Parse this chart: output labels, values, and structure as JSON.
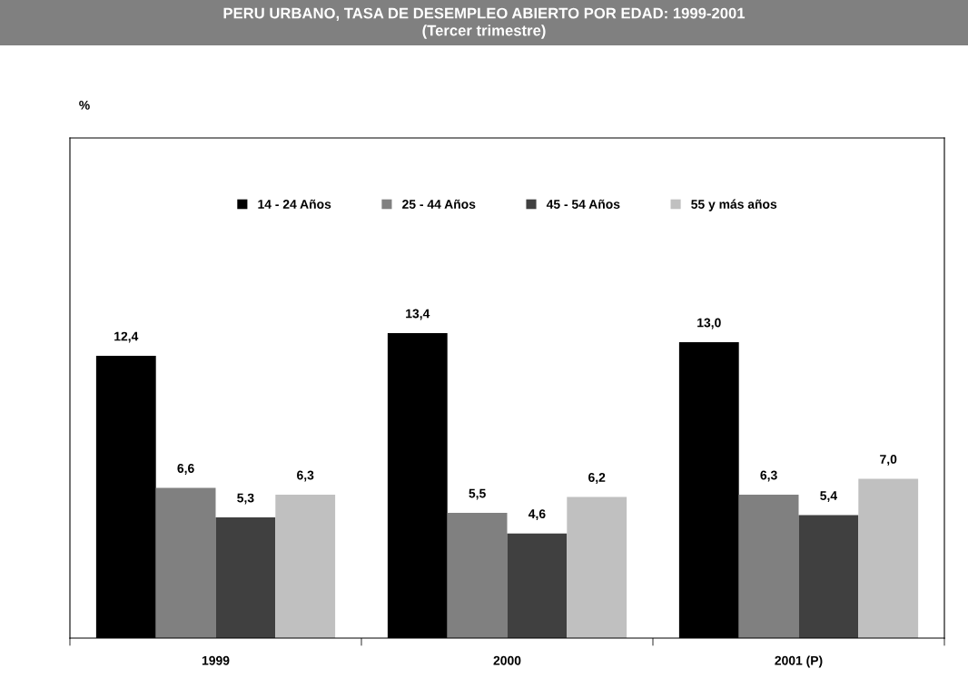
{
  "chart_data": {
    "type": "bar",
    "title": "PERU URBANO, TASA DE DESEMPLEO ABIERTO POR EDAD: 1999-2001",
    "subtitle": "(Tercer trimestre)",
    "annotations": [
      "%"
    ],
    "categories": [
      "1999",
      "2000",
      "2001 (P)"
    ],
    "series": [
      {
        "name": "14 - 24 Años",
        "color": "#000000",
        "values": [
          12.4,
          13.4,
          13.0
        ],
        "value_labels": [
          "12,4",
          "13,4",
          "13,0"
        ]
      },
      {
        "name": "25 - 44 Años",
        "color": "#808080",
        "values": [
          6.6,
          5.5,
          6.3
        ],
        "value_labels": [
          "6,6",
          "5,5",
          "6,3"
        ]
      },
      {
        "name": "45 - 54 Años",
        "color": "#404040",
        "values": [
          5.3,
          4.6,
          5.4
        ],
        "value_labels": [
          "5,3",
          "4,6",
          "5,4"
        ]
      },
      {
        "name": "55 y más años",
        "color": "#c0c0c0",
        "values": [
          6.3,
          6.2,
          7.0
        ],
        "value_labels": [
          "6,3",
          "6,2",
          "7,0"
        ]
      }
    ],
    "legend": "top",
    "grid": false,
    "tick_labels": "x"
  }
}
